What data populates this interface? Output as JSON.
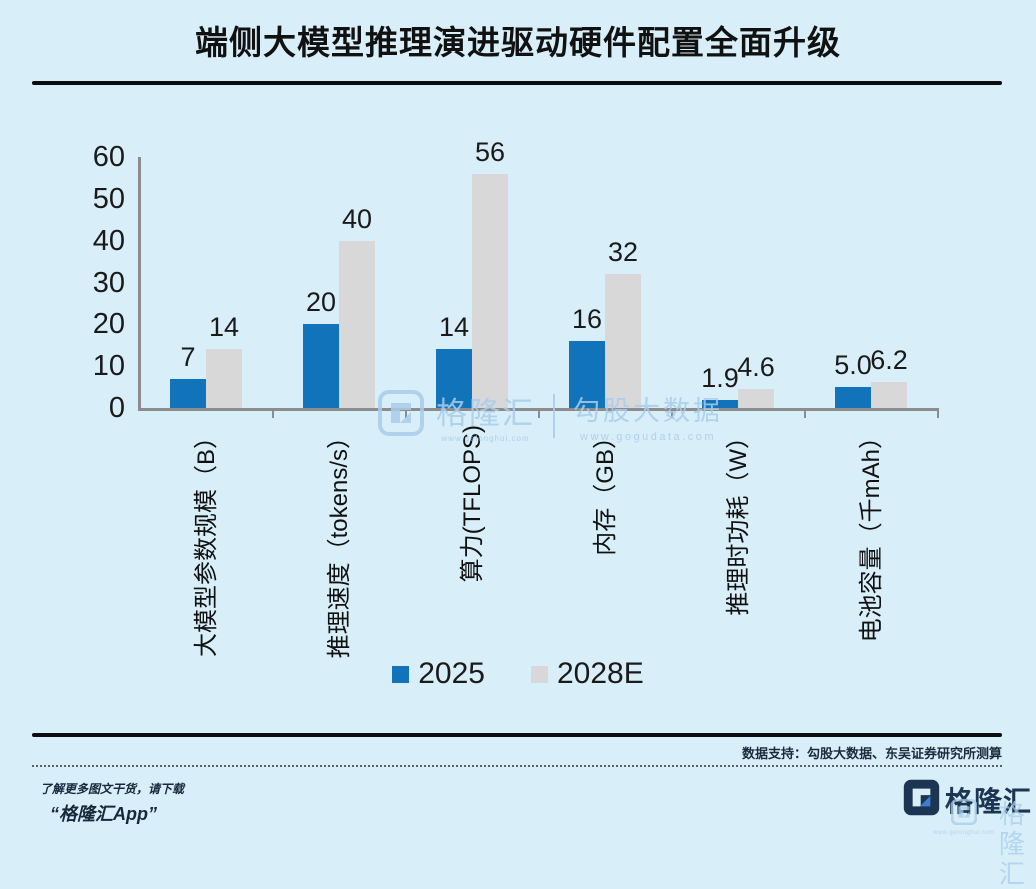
{
  "title": "端侧大模型推理演进驱动硬件配置全面升级",
  "chart_data": {
    "type": "bar",
    "categories": [
      "大模型参数规模（B）",
      "推理速度（tokens/s）",
      "算力(TFLOPS)",
      "内存（GB）",
      "推理时功耗（W）",
      "电池容量（千mAh）"
    ],
    "series": [
      {
        "name": "2025",
        "color": "#1173b9",
        "values": [
          7,
          20,
          14,
          16,
          1.9,
          5.0
        ],
        "labels": [
          "7",
          "20",
          "14",
          "16",
          "1.9",
          "5.0"
        ]
      },
      {
        "name": "2028E",
        "color": "#d8d8d8",
        "values": [
          14,
          40,
          56,
          32,
          4.6,
          6.2
        ],
        "labels": [
          "14",
          "40",
          "56",
          "32",
          "4.6",
          "6.2"
        ]
      }
    ],
    "ylim": [
      0,
      60
    ],
    "yticks": [
      0,
      10,
      20,
      30,
      40,
      50,
      60
    ],
    "xlabel": "",
    "ylabel": "",
    "grid": false,
    "legend_position": "bottom-center",
    "x_labels_rotated": true
  },
  "watermark_center": {
    "brand": "格隆汇",
    "brand_url": "www.gelonghui.com",
    "partner": "勾股大数据",
    "partner_url": "www.gogudata.com"
  },
  "footer": {
    "source": "数据支持：勾股大数据、东吴证券研究所测算",
    "promo_line1": "了解更多图文干货，请下载",
    "promo_line2": "“格隆汇App”",
    "brand": "格隆汇",
    "brand_watermark": "格隆汇",
    "brand_watermark_url": "www.gelonghui.com"
  },
  "colors": {
    "background": "#d8eef8",
    "bar_2025": "#1173b9",
    "bar_2028e": "#d8d8d8",
    "axis": "#8c8c8c",
    "text": "#1a1a1a",
    "footer_navy": "#1b2b3d",
    "logo_navy": "#1b3553",
    "logo_blue": "#3a7fd5",
    "watermark_blue": "#a9cdec",
    "rule_black": "#0d0d0d"
  }
}
